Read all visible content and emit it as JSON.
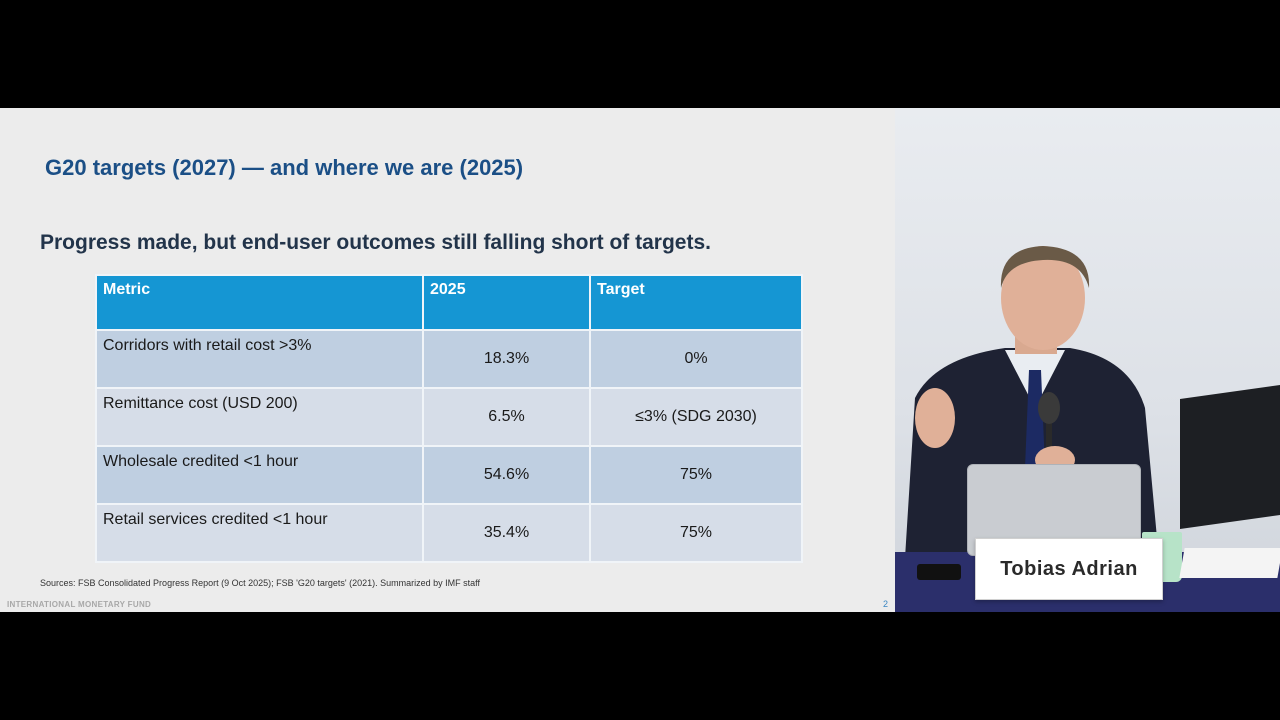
{
  "slide": {
    "title": "G20 targets (2027) — and where we are (2025)",
    "subtitle": "Progress made, but end-user outcomes still falling short of targets.",
    "table": {
      "headers": [
        "Metric",
        "2025",
        "Target"
      ],
      "rows": [
        [
          "Corridors with retail cost >3%",
          "18.3%",
          "0%"
        ],
        [
          "Remittance cost (USD 200)",
          "6.5%",
          "≤3% (SDG 2030)"
        ],
        [
          "Wholesale credited <1 hour",
          "54.6%",
          "75%"
        ],
        [
          "Retail services credited <1 hour",
          "35.4%",
          "75%"
        ]
      ]
    },
    "sources": "Sources: FSB Consolidated Progress Report (9 Oct 2025); FSB 'G20 targets' (2021). Summarized by IMF staff",
    "footer_org": "INTERNATIONAL MONETARY FUND",
    "page_number": "2"
  },
  "camera": {
    "speaker_name": "Tobias Adrian"
  },
  "colors": {
    "title": "#1b4f86",
    "table_header": "#1596d3",
    "row_dark": "#bfcfe1",
    "row_light": "#d6dde8",
    "desk": "#2b2f6b"
  }
}
